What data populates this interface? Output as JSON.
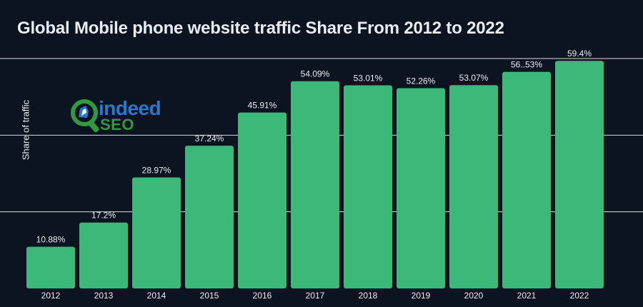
{
  "logo": {
    "text_top": "indeed",
    "text_bottom": "SEO"
  },
  "chart_data": {
    "type": "bar",
    "title": "Global Mobile phone website traffic Share From 2012 to 2022",
    "xlabel": "",
    "ylabel": "Share of traffic",
    "categories": [
      "2012",
      "2013",
      "2014",
      "2015",
      "2016",
      "2017",
      "2018",
      "2019",
      "2020",
      "2021",
      "2022"
    ],
    "values": [
      10.88,
      17.2,
      28.97,
      37.24,
      45.91,
      54.09,
      53.01,
      52.26,
      53.07,
      56.53,
      59.4
    ],
    "value_labels": [
      "10.88%",
      "17.2%",
      "28.97%",
      "37.24%",
      "45.91%",
      "54.09%",
      "53.01%",
      "52.26%",
      "53.07%",
      "56..53%",
      "59.4%"
    ],
    "ylim": [
      0,
      60
    ],
    "gridlines": [
      20,
      40,
      60
    ],
    "grid": true,
    "colors": {
      "bar": "#3cb878",
      "background": "#0d1421",
      "text": "#e9edf2",
      "grid": "#d9dde3"
    }
  }
}
